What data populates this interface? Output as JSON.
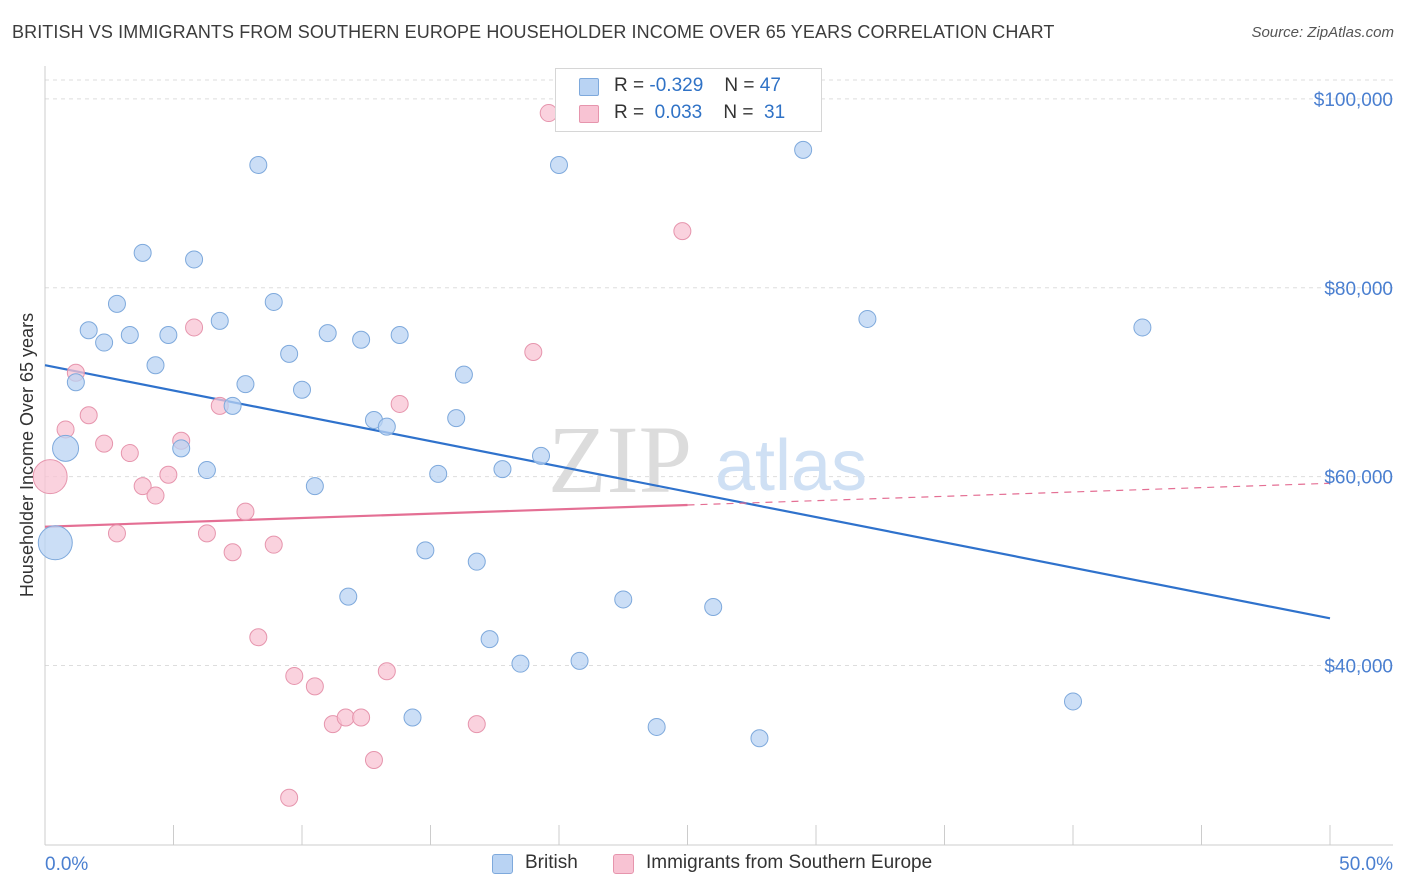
{
  "title": "BRITISH VS IMMIGRANTS FROM SOUTHERN EUROPE HOUSEHOLDER INCOME OVER 65 YEARS CORRELATION CHART",
  "source": "Source: ZipAtlas.com",
  "watermark": {
    "zip": "ZIP",
    "atlas": "atlas"
  },
  "legend": {
    "british": {
      "r_label": "R =",
      "r_value": "-0.329",
      "n_label": "N =",
      "n_value": "47"
    },
    "immigrants": {
      "r_label": "R =",
      "r_value": "0.033",
      "n_label": "N =",
      "n_value": "31"
    }
  },
  "bottom_legend": {
    "british": "British",
    "immigrants": "Immigrants from Southern Europe"
  },
  "colors": {
    "british_fill": "#b9d3f3",
    "british_stroke": "#7ea9dc",
    "british_line": "#2f72cc",
    "immigrants_fill": "#f8c3d3",
    "immigrants_stroke": "#e695ad",
    "immigrants_line": "#e46f94",
    "axis_text": "#4a7fd0",
    "grid": "#dddddd"
  },
  "chart_data": {
    "type": "scatter",
    "title": "BRITISH VS IMMIGRANTS FROM SOUTHERN EUROPE HOUSEHOLDER INCOME OVER 65 YEARS CORRELATION CHART",
    "xlabel": "",
    "ylabel": "Householder Income Over 65 years",
    "xlim": [
      0,
      50
    ],
    "ylim": [
      21000,
      102000
    ],
    "x_tick_labels": [
      "0.0%",
      "50.0%"
    ],
    "y_ticks": [
      40000,
      60000,
      80000,
      100000
    ],
    "y_tick_labels": [
      "$40,000",
      "$60,000",
      "$80,000",
      "$100,000"
    ],
    "grid": true,
    "legend_position": "top-center",
    "series": [
      {
        "name": "British",
        "points": [
          [
            0.4,
            53000,
            3
          ],
          [
            0.8,
            63000,
            2
          ],
          [
            1.2,
            70000,
            1
          ],
          [
            1.7,
            75500,
            1
          ],
          [
            2.3,
            74200,
            1
          ],
          [
            2.8,
            78300,
            1
          ],
          [
            3.3,
            75000,
            1
          ],
          [
            3.8,
            83700,
            1
          ],
          [
            4.3,
            71800,
            1
          ],
          [
            4.8,
            75000,
            1
          ],
          [
            5.3,
            63000,
            1
          ],
          [
            5.8,
            83000,
            1
          ],
          [
            6.3,
            60700,
            1
          ],
          [
            6.8,
            76500,
            1
          ],
          [
            7.3,
            67500,
            1
          ],
          [
            7.8,
            69800,
            1
          ],
          [
            8.3,
            93000,
            1
          ],
          [
            8.9,
            78500,
            1
          ],
          [
            9.5,
            73000,
            1
          ],
          [
            10.0,
            69200,
            1
          ],
          [
            10.5,
            59000,
            1
          ],
          [
            11.0,
            75200,
            1
          ],
          [
            11.8,
            47300,
            1
          ],
          [
            12.3,
            74500,
            1
          ],
          [
            12.8,
            66000,
            1
          ],
          [
            13.3,
            65300,
            1
          ],
          [
            13.8,
            75000,
            1
          ],
          [
            14.3,
            34500,
            1
          ],
          [
            14.8,
            52200,
            1
          ],
          [
            15.3,
            60300,
            1
          ],
          [
            16.0,
            66200,
            1
          ],
          [
            16.3,
            70800,
            1
          ],
          [
            16.8,
            51000,
            1
          ],
          [
            17.3,
            42800,
            1
          ],
          [
            17.8,
            60800,
            1
          ],
          [
            18.5,
            40200,
            1
          ],
          [
            19.3,
            62200,
            1
          ],
          [
            20.0,
            93000,
            1
          ],
          [
            20.8,
            40500,
            1
          ],
          [
            22.5,
            47000,
            1
          ],
          [
            23.8,
            33500,
            1
          ],
          [
            26.0,
            46200,
            1
          ],
          [
            27.8,
            32300,
            1
          ],
          [
            29.5,
            94600,
            1
          ],
          [
            32.0,
            76700,
            1
          ],
          [
            40.0,
            36200,
            1
          ],
          [
            42.7,
            75800,
            1
          ]
        ]
      },
      {
        "name": "Immigrants from Southern Europe",
        "points": [
          [
            0.2,
            60000,
            3
          ],
          [
            0.8,
            65000,
            1
          ],
          [
            1.2,
            71000,
            1
          ],
          [
            1.7,
            66500,
            1
          ],
          [
            2.3,
            63500,
            1
          ],
          [
            2.8,
            54000,
            1
          ],
          [
            3.3,
            62500,
            1
          ],
          [
            3.8,
            59000,
            1
          ],
          [
            4.3,
            58000,
            1
          ],
          [
            4.8,
            60200,
            1
          ],
          [
            5.3,
            63800,
            1
          ],
          [
            5.8,
            75800,
            1
          ],
          [
            6.3,
            54000,
            1
          ],
          [
            6.8,
            67500,
            1
          ],
          [
            7.3,
            52000,
            1
          ],
          [
            7.8,
            56300,
            1
          ],
          [
            8.3,
            43000,
            1
          ],
          [
            8.9,
            52800,
            1
          ],
          [
            9.5,
            26000,
            1
          ],
          [
            9.7,
            38900,
            1
          ],
          [
            10.5,
            37800,
            1
          ],
          [
            11.2,
            33800,
            1
          ],
          [
            11.7,
            34500,
            1
          ],
          [
            12.3,
            34500,
            1
          ],
          [
            12.8,
            30000,
            1
          ],
          [
            13.3,
            39400,
            1
          ],
          [
            13.8,
            67700,
            1
          ],
          [
            16.8,
            33800,
            1
          ],
          [
            19.0,
            73200,
            1
          ],
          [
            19.6,
            98500,
            1
          ],
          [
            24.8,
            86000,
            1
          ]
        ]
      }
    ],
    "trend_lines": [
      {
        "name": "British",
        "x": [
          0,
          50
        ],
        "y": [
          71800,
          45000
        ],
        "style": "solid"
      },
      {
        "name": "Immigrants from Southern Europe",
        "x": [
          0,
          25
        ],
        "y": [
          54700,
          57000
        ],
        "style": "solid"
      },
      {
        "name": "Immigrants from Southern Europe",
        "x": [
          25,
          50
        ],
        "y": [
          57000,
          59300
        ],
        "style": "dashed"
      }
    ]
  }
}
